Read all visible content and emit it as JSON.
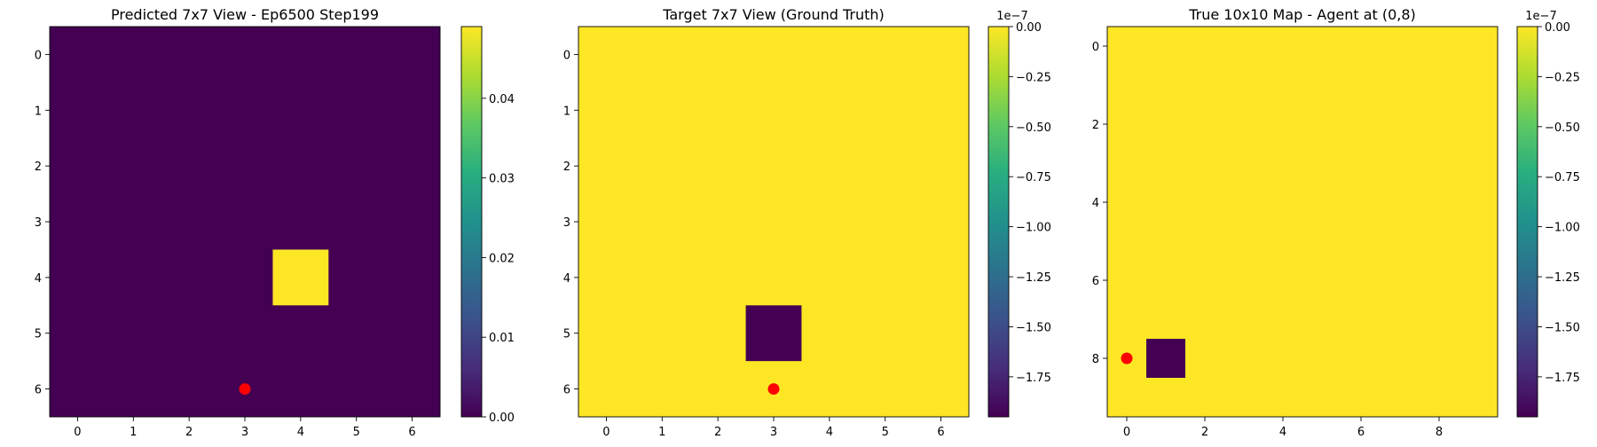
{
  "chart_data": [
    {
      "type": "heatmap",
      "title": "Predicted 7x7 View - Ep6500 Step199",
      "rows": 7,
      "cols": 7,
      "x_ticks": [
        0,
        1,
        2,
        3,
        4,
        5,
        6
      ],
      "y_ticks": [
        0,
        1,
        2,
        3,
        4,
        5,
        6
      ],
      "background_value": 0.0,
      "cells": [
        {
          "row": 4,
          "col": 4,
          "value": 0.049
        }
      ],
      "marker": {
        "row": 6,
        "col": 3,
        "color": "#ff0000"
      },
      "colorbar": {
        "vmin": 0.0,
        "vmax": 0.049,
        "ticks": [
          "0.00",
          "0.01",
          "0.02",
          "0.03",
          "0.04"
        ],
        "tick_values": [
          0.0,
          0.01,
          0.02,
          0.03,
          0.04
        ],
        "exponent": ""
      }
    },
    {
      "type": "heatmap",
      "title": "Target 7x7 View (Ground Truth)",
      "rows": 7,
      "cols": 7,
      "x_ticks": [
        0,
        1,
        2,
        3,
        4,
        5,
        6
      ],
      "y_ticks": [
        0,
        1,
        2,
        3,
        4,
        5,
        6
      ],
      "background_value": 0.0,
      "cells": [
        {
          "row": 5,
          "col": 3,
          "value": -1.95e-07
        }
      ],
      "marker": {
        "row": 6,
        "col": 3,
        "color": "#ff0000"
      },
      "colorbar": {
        "vmin": -1.95e-07,
        "vmax": 0.0,
        "ticks": [
          "0.00",
          "−0.25",
          "−0.50",
          "−0.75",
          "−1.00",
          "−1.25",
          "−1.50",
          "−1.75"
        ],
        "tick_values": [
          0,
          -2.5e-08,
          -5e-08,
          -7.5e-08,
          -1e-07,
          -1.25e-07,
          -1.5e-07,
          -1.75e-07
        ],
        "exponent": "1e−7"
      }
    },
    {
      "type": "heatmap",
      "title": "True 10x10 Map - Agent at (0,8)",
      "rows": 10,
      "cols": 10,
      "x_ticks": [
        0,
        2,
        4,
        6,
        8
      ],
      "y_ticks": [
        0,
        2,
        4,
        6,
        8
      ],
      "background_value": 0.0,
      "cells": [
        {
          "row": 8,
          "col": 1,
          "value": -1.95e-07
        }
      ],
      "marker": {
        "row": 8,
        "col": 0,
        "color": "#ff0000"
      },
      "colorbar": {
        "vmin": -1.95e-07,
        "vmax": 0.0,
        "ticks": [
          "0.00",
          "−0.25",
          "−0.50",
          "−0.75",
          "−1.00",
          "−1.25",
          "−1.50",
          "−1.75"
        ],
        "tick_values": [
          0,
          -2.5e-08,
          -5e-08,
          -7.5e-08,
          -1e-07,
          -1.25e-07,
          -1.5e-07,
          -1.75e-07
        ],
        "exponent": "1e−7"
      }
    }
  ],
  "colors": {
    "low": "#440154",
    "high": "#fde725",
    "marker": "#ff0000"
  }
}
